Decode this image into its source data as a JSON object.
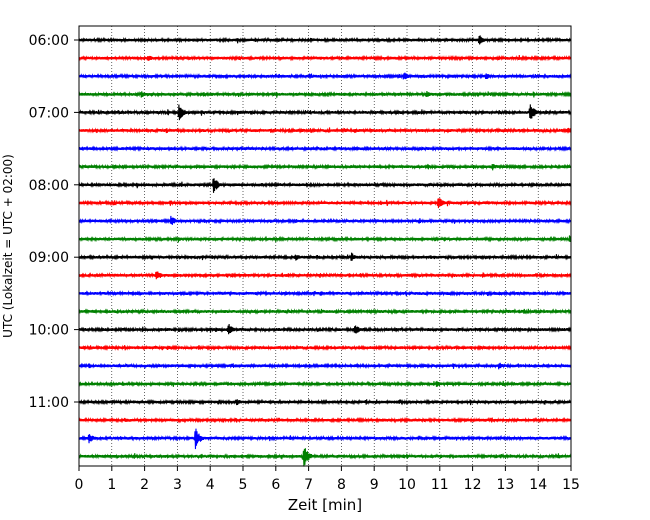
{
  "chart_data": {
    "type": "line",
    "title": "",
    "xlabel": "Zeit  [min]",
    "ylabel": "UTC (Lokalzeit = UTC + 02:00)",
    "xlim": [
      0,
      15
    ],
    "x_ticks": [
      "0",
      "1",
      "2",
      "3",
      "4",
      "5",
      "6",
      "7",
      "8",
      "9",
      "10",
      "11",
      "12",
      "13",
      "14",
      "15"
    ],
    "y_ticks": [
      {
        "label": "06:00",
        "trace": 0
      },
      {
        "label": "07:00",
        "trace": 4
      },
      {
        "label": "08:00",
        "trace": 8
      },
      {
        "label": "09:00",
        "trace": 12
      },
      {
        "label": "10:00",
        "trace": 16
      },
      {
        "label": "11:00",
        "trace": 20
      }
    ],
    "grid": {
      "x": true,
      "style": "dotted"
    },
    "trace_minutes": 15,
    "trace_count": 24,
    "colors": [
      "#000000",
      "#ff0000",
      "#0000ff",
      "#008000"
    ],
    "events": [
      {
        "trace": 0,
        "x": 12.2,
        "amp": 6
      },
      {
        "trace": 1,
        "x": 2.1,
        "amp": 4
      },
      {
        "trace": 2,
        "x": 9.9,
        "amp": 5
      },
      {
        "trace": 2,
        "x": 12.4,
        "amp": 4
      },
      {
        "trace": 3,
        "x": 1.9,
        "amp": 4
      },
      {
        "trace": 3,
        "x": 10.6,
        "amp": 4
      },
      {
        "trace": 4,
        "x": 3.05,
        "amp": 9
      },
      {
        "trace": 4,
        "x": 13.75,
        "amp": 10
      },
      {
        "trace": 5,
        "x": 8.1,
        "amp": 3
      },
      {
        "trace": 5,
        "x": 14.9,
        "amp": 4
      },
      {
        "trace": 7,
        "x": 1.1,
        "amp": 3
      },
      {
        "trace": 7,
        "x": 12.6,
        "amp": 4
      },
      {
        "trace": 8,
        "x": 4.1,
        "amp": 9
      },
      {
        "trace": 9,
        "x": 10.95,
        "amp": 7
      },
      {
        "trace": 10,
        "x": 2.8,
        "amp": 6
      },
      {
        "trace": 11,
        "x": 14.95,
        "amp": 4
      },
      {
        "trace": 12,
        "x": 6.6,
        "amp": 4
      },
      {
        "trace": 12,
        "x": 8.3,
        "amp": 5
      },
      {
        "trace": 13,
        "x": 2.35,
        "amp": 6
      },
      {
        "trace": 13,
        "x": 4.5,
        "amp": 3
      },
      {
        "trace": 14,
        "x": 7.35,
        "amp": 3
      },
      {
        "trace": 16,
        "x": 4.55,
        "amp": 7
      },
      {
        "trace": 16,
        "x": 8.4,
        "amp": 6
      },
      {
        "trace": 17,
        "x": 2.7,
        "amp": 3
      },
      {
        "trace": 18,
        "x": 0.3,
        "amp": 3
      },
      {
        "trace": 18,
        "x": 12.8,
        "amp": 4
      },
      {
        "trace": 19,
        "x": 10.9,
        "amp": 4
      },
      {
        "trace": 20,
        "x": 4.8,
        "amp": 4
      },
      {
        "trace": 21,
        "x": 1.4,
        "amp": 3
      },
      {
        "trace": 22,
        "x": 3.55,
        "amp": 11
      },
      {
        "trace": 22,
        "x": 0.3,
        "amp": 6
      },
      {
        "trace": 23,
        "x": 6.85,
        "amp": 12
      }
    ]
  }
}
